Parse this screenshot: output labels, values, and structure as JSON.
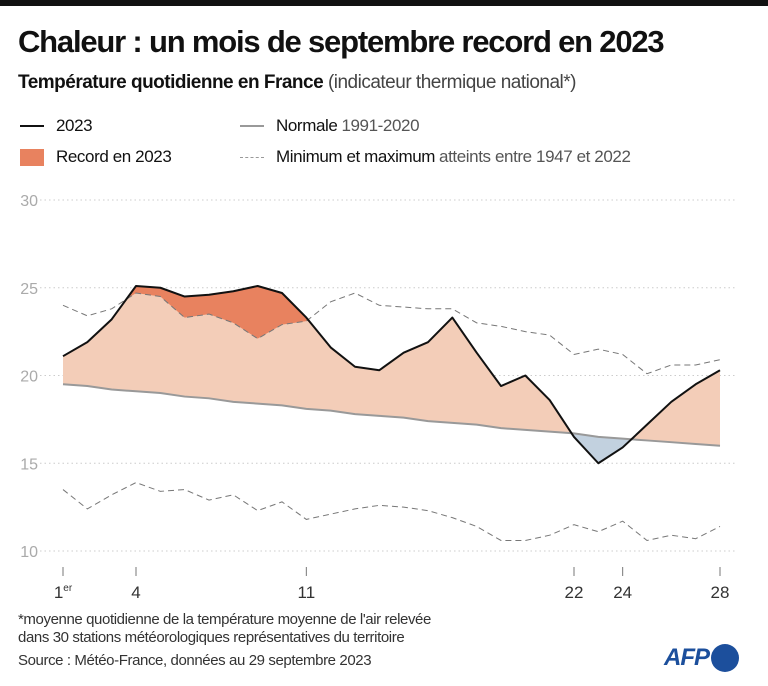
{
  "header": {
    "title": "Chaleur : un mois de septembre record en 2023",
    "subtitle_bold": "Température quotidienne en France",
    "subtitle_light": "(indicateur thermique national*)"
  },
  "legend": {
    "y2023": "2023",
    "normal_bold": "Normale",
    "normal_light": "1991-2020",
    "record": "Record en 2023",
    "minmax_bold": "Minimum et maximum",
    "minmax_light": "atteints entre 1947 et 2022"
  },
  "footer": {
    "note1": "*moyenne quotidienne de la température moyenne de l'air relevée",
    "note2": "dans 30 stations météorologiques représentatives du territoire",
    "source": "Source : Météo-France, données au 29 septembre 2023",
    "logo": "AFP"
  },
  "chart_data": {
    "type": "line",
    "ylim": [
      10,
      30
    ],
    "yticks": [
      "30",
      "25",
      "20",
      "15",
      "10"
    ],
    "xticks": [
      {
        "day": 1,
        "label": "1",
        "sup": "er"
      },
      {
        "day": 4,
        "label": "4"
      },
      {
        "day": 11,
        "label": "11"
      },
      {
        "day": 22,
        "label": "22"
      },
      {
        "day": 24,
        "label": "24"
      },
      {
        "day": 28,
        "label": "28"
      }
    ],
    "grid": true,
    "colors": {
      "y2023": "#111111",
      "normal": "#999999",
      "minmax": "#777777",
      "above_normal": "#f3cdb8",
      "record": "#e8825f",
      "below_normal": "#c2d1df"
    },
    "x": [
      1,
      2,
      3,
      4,
      5,
      6,
      7,
      8,
      9,
      10,
      11,
      12,
      13,
      14,
      15,
      16,
      17,
      18,
      19,
      20,
      21,
      22,
      23,
      24,
      25,
      26,
      27,
      28
    ],
    "series": [
      {
        "name": "2023",
        "values": [
          21.1,
          21.9,
          23.2,
          25.1,
          25.0,
          24.5,
          24.6,
          24.8,
          25.1,
          24.7,
          23.3,
          21.6,
          20.5,
          20.3,
          21.3,
          21.9,
          23.3,
          21.3,
          19.4,
          20.0,
          18.6,
          16.5,
          15.0,
          15.9,
          17.2,
          18.5,
          19.5,
          20.3
        ]
      },
      {
        "name": "Normale",
        "values": [
          19.5,
          19.4,
          19.2,
          19.1,
          19.0,
          18.8,
          18.7,
          18.5,
          18.4,
          18.3,
          18.1,
          18.0,
          17.8,
          17.7,
          17.6,
          17.4,
          17.3,
          17.2,
          17.0,
          16.9,
          16.8,
          16.7,
          16.5,
          16.4,
          16.3,
          16.2,
          16.1,
          16.0
        ]
      },
      {
        "name": "Maximum",
        "values": [
          24.0,
          23.4,
          23.8,
          24.7,
          24.5,
          23.3,
          23.5,
          23.0,
          22.1,
          22.9,
          23.1,
          24.2,
          24.7,
          24.0,
          23.9,
          23.8,
          23.8,
          23.0,
          22.8,
          22.5,
          22.3,
          21.2,
          21.5,
          21.2,
          20.1,
          20.6,
          20.6,
          20.9
        ]
      },
      {
        "name": "Minimum",
        "values": [
          13.5,
          12.4,
          13.2,
          13.9,
          13.4,
          13.5,
          12.9,
          13.2,
          12.3,
          12.8,
          11.8,
          12.1,
          12.4,
          12.6,
          12.5,
          12.3,
          11.9,
          11.4,
          10.6,
          10.6,
          10.9,
          11.5,
          11.1,
          11.7,
          10.6,
          10.9,
          10.7,
          11.4
        ]
      }
    ]
  }
}
